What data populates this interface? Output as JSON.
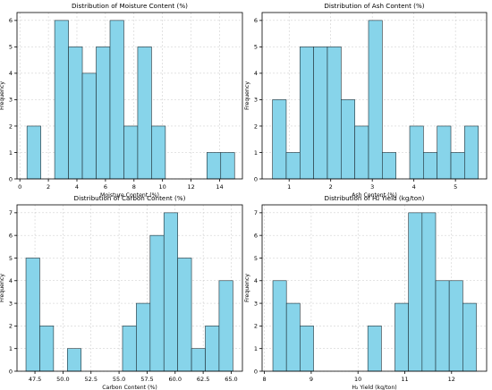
{
  "colors": {
    "bar_fill": "#87d4ea",
    "bar_stroke": "#1f2f36",
    "grid": "#b0b0b0",
    "axis": "#000000",
    "background": "#ffffff"
  },
  "chart_data": [
    {
      "type": "bar",
      "title": "Distribution of Moisture Content (%)",
      "xlabel": "Moisture Content (%)",
      "ylabel": "Frequency",
      "xlim": [
        -0.2,
        15.6
      ],
      "ylim": [
        0,
        6.3
      ],
      "x_ticks": [
        0,
        2,
        4,
        6,
        8,
        10,
        12,
        14
      ],
      "x_tick_labels": [
        "0",
        "2",
        "4",
        "6",
        "8",
        "10",
        "12",
        "14"
      ],
      "y_ticks": [
        0,
        1,
        2,
        3,
        4,
        5,
        6
      ],
      "y_tick_labels": [
        "0",
        "1",
        "2",
        "3",
        "4",
        "5",
        "6"
      ],
      "grid": true,
      "bin_edges": [
        0.5,
        1.47,
        2.44,
        3.41,
        4.38,
        5.35,
        6.32,
        7.29,
        8.26,
        9.23,
        10.2,
        11.17,
        12.14,
        13.11,
        14.08,
        15.05
      ],
      "values": [
        2,
        0,
        6,
        5,
        4,
        5,
        6,
        2,
        5,
        2,
        0,
        0,
        0,
        1,
        1
      ]
    },
    {
      "type": "bar",
      "title": "Distribution of Ash Content (%)",
      "xlabel": "Ash Content (%)",
      "ylabel": "Frequency",
      "xlim": [
        0.35,
        5.75
      ],
      "ylim": [
        0,
        6.3
      ],
      "x_ticks": [
        1,
        2,
        3,
        4,
        5
      ],
      "x_tick_labels": [
        "1",
        "2",
        "3",
        "4",
        "5"
      ],
      "y_ticks": [
        0,
        1,
        2,
        3,
        4,
        5,
        6
      ],
      "y_tick_labels": [
        "0",
        "1",
        "2",
        "3",
        "4",
        "5",
        "6"
      ],
      "grid": true,
      "bin_edges": [
        0.6,
        0.93,
        1.26,
        1.59,
        1.92,
        2.25,
        2.58,
        2.91,
        3.24,
        3.57,
        3.9,
        4.23,
        4.56,
        4.89,
        5.22,
        5.55
      ],
      "values": [
        3,
        1,
        5,
        5,
        5,
        3,
        2,
        6,
        1,
        0,
        2,
        1,
        2,
        1,
        2
      ]
    },
    {
      "type": "bar",
      "title": "Distribution of Carbon Content (%)",
      "xlabel": "Carbon Content (%)",
      "ylabel": "Frequency",
      "xlim": [
        45.9,
        66.0
      ],
      "ylim": [
        0,
        7.35
      ],
      "x_ticks": [
        47.5,
        50.0,
        52.5,
        55.0,
        57.5,
        60.0,
        62.5,
        65.0
      ],
      "x_tick_labels": [
        "47.5",
        "50.0",
        "52.5",
        "55.0",
        "57.5",
        "60.0",
        "62.5",
        "65.0"
      ],
      "y_ticks": [
        0,
        1,
        2,
        3,
        4,
        5,
        6,
        7
      ],
      "y_tick_labels": [
        "0",
        "1",
        "2",
        "3",
        "4",
        "5",
        "6",
        "7"
      ],
      "grid": true,
      "bin_edges": [
        46.7,
        47.93,
        49.16,
        50.39,
        51.62,
        52.85,
        54.08,
        55.31,
        56.54,
        57.77,
        59.0,
        60.23,
        61.46,
        62.69,
        63.92,
        65.15
      ],
      "values": [
        5,
        2,
        0,
        1,
        0,
        0,
        0,
        2,
        3,
        6,
        7,
        5,
        1,
        2,
        4
      ]
    },
    {
      "type": "bar",
      "title": "Distribution of H₂ Yield (kg/ton)",
      "xlabel": "H₂ Yield (kg/ton)",
      "ylabel": "Frequency",
      "xlim": [
        7.95,
        12.75
      ],
      "ylim": [
        0,
        7.35
      ],
      "x_ticks": [
        8,
        9,
        10,
        11,
        12
      ],
      "x_tick_labels": [
        "8",
        "9",
        "10",
        "11",
        "12"
      ],
      "y_ticks": [
        0,
        1,
        2,
        3,
        4,
        5,
        6,
        7
      ],
      "y_tick_labels": [
        "0",
        "1",
        "2",
        "3",
        "4",
        "5",
        "6",
        "7"
      ],
      "grid": true,
      "bin_edges": [
        8.18,
        8.47,
        8.76,
        9.05,
        9.34,
        9.63,
        9.92,
        10.21,
        10.5,
        10.79,
        11.08,
        11.37,
        11.66,
        11.95,
        12.24,
        12.53
      ],
      "values": [
        4,
        3,
        2,
        0,
        0,
        0,
        0,
        2,
        0,
        3,
        7,
        7,
        4,
        4,
        3
      ]
    }
  ]
}
